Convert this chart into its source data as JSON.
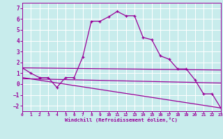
{
  "xlabel": "Windchill (Refroidissement éolien,°C)",
  "xlim": [
    0,
    23
  ],
  "ylim": [
    -2.5,
    7.5
  ],
  "yticks": [
    -2,
    -1,
    0,
    1,
    2,
    3,
    4,
    5,
    6,
    7
  ],
  "xticks": [
    0,
    1,
    2,
    3,
    4,
    5,
    6,
    7,
    8,
    9,
    10,
    11,
    12,
    13,
    14,
    15,
    16,
    17,
    18,
    19,
    20,
    21,
    22,
    23
  ],
  "bg_color": "#c8ecec",
  "line_color": "#990099",
  "grid_color": "#ffffff",
  "main_x": [
    0,
    1,
    2,
    3,
    4,
    5,
    6,
    7,
    8,
    9,
    10,
    11,
    12,
    13,
    14,
    15,
    16,
    17,
    18,
    19,
    20,
    21,
    22,
    23
  ],
  "main_y": [
    1.5,
    1.0,
    0.6,
    0.6,
    -0.3,
    0.6,
    0.6,
    2.5,
    5.8,
    5.8,
    6.2,
    6.7,
    6.3,
    6.3,
    4.3,
    4.1,
    2.6,
    2.3,
    1.4,
    1.4,
    0.4,
    -0.9,
    -0.9,
    -2.2
  ],
  "line1_x": [
    0,
    23
  ],
  "line1_y": [
    1.5,
    1.3
  ],
  "line2_x": [
    0,
    23
  ],
  "line2_y": [
    0.6,
    -2.2
  ],
  "line3_x": [
    0,
    23
  ],
  "line3_y": [
    0.5,
    0.1
  ]
}
